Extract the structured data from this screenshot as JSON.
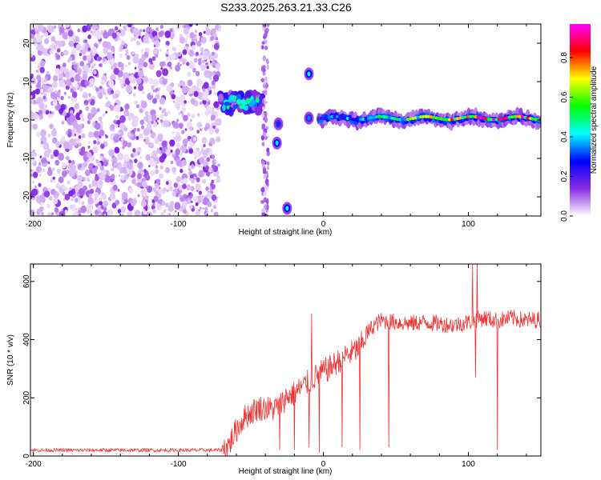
{
  "figure_title": "S233.2025.263.21.33.C26",
  "chart_data": [
    {
      "type": "heatmap",
      "title": "S233.2025.263.21.33.C26",
      "xlabel": "Height of straight line (km)",
      "ylabel": "Frequency (Hz)",
      "xlim": [
        -202,
        150
      ],
      "ylim": [
        -25,
        25
      ],
      "xticks": [
        -200,
        -100,
        0,
        100
      ],
      "yticks": [
        -20,
        -10,
        0,
        10,
        20
      ],
      "colorbar": {
        "label": "Normalized spectral amplitude",
        "range": [
          0.0,
          0.97
        ],
        "ticks": [
          0.0,
          0.2,
          0.4,
          0.6,
          0.8
        ],
        "tick_labels": [
          "0.0",
          "0.2",
          "0.4",
          "0.6",
          "0.8"
        ],
        "colormap": [
          "#ffffff",
          "#8a2be2",
          "#0000ff",
          "#00ffff",
          "#00ff00",
          "#ffff00",
          "#ff0000",
          "#ff00ff"
        ]
      },
      "features": [
        {
          "name": "noise",
          "x_range": [
            -202,
            -72
          ],
          "freq_range": [
            -25,
            25
          ],
          "amplitude": 0.1
        },
        {
          "name": "onset-cluster",
          "x_range": [
            -72,
            -42
          ],
          "freq_range": [
            2,
            7
          ],
          "amplitude": 0.45
        },
        {
          "name": "column",
          "x_range": [
            -42,
            -38
          ],
          "freq_range": [
            -25,
            25
          ],
          "amplitude": 0.15
        },
        {
          "name": "blob",
          "x_center": -32,
          "freq_center": -6,
          "amplitude": 0.4
        },
        {
          "name": "blob",
          "x_center": -31,
          "freq_center": -1,
          "amplitude": 0.3
        },
        {
          "name": "blob",
          "x_center": -25,
          "freq_center": -23,
          "amplitude": 0.45
        },
        {
          "name": "blob",
          "x_center": -10,
          "freq_center": 12,
          "amplitude": 0.45
        },
        {
          "name": "blob",
          "x_center": -10,
          "freq_center": 0.5,
          "amplitude": 0.35
        },
        {
          "name": "carrier-line",
          "x_range": [
            -3,
            150
          ],
          "freq_range": [
            -2,
            2
          ],
          "amplitude_range": [
            0.3,
            0.9
          ]
        }
      ]
    },
    {
      "type": "line",
      "xlabel": "Height of straight line (km)",
      "ylabel": "SNR (10 * v/v)",
      "xlim": [
        -202,
        150
      ],
      "ylim": [
        0,
        660
      ],
      "xticks": [
        -200,
        -100,
        0,
        100
      ],
      "yticks": [
        0,
        200,
        400,
        600
      ],
      "color": "#ee3333",
      "series": [
        {
          "name": "SNR",
          "x": [
            -202,
            -180,
            -160,
            -140,
            -120,
            -100,
            -80,
            -70,
            -65,
            -60,
            -55,
            -50,
            -45,
            -40,
            -35,
            -30,
            -25,
            -20,
            -15,
            -10,
            -5,
            0,
            5,
            10,
            15,
            20,
            25,
            30,
            35,
            40,
            50,
            60,
            70,
            80,
            90,
            100,
            110,
            120,
            130,
            140,
            150
          ],
          "values": [
            20,
            20,
            20,
            20,
            20,
            20,
            20,
            20,
            40,
            90,
            130,
            150,
            165,
            165,
            160,
            175,
            205,
            215,
            235,
            255,
            275,
            290,
            305,
            325,
            345,
            355,
            375,
            420,
            450,
            465,
            460,
            455,
            460,
            455,
            450,
            460,
            475,
            465,
            475,
            465,
            470
          ],
          "drops": [
            {
              "x": -30,
              "value": 20
            },
            {
              "x": -20,
              "value": 20
            },
            {
              "x": -10,
              "value": 30
            },
            {
              "x": -3,
              "value": 10
            },
            {
              "x": 13,
              "value": 30
            },
            {
              "x": 25,
              "value": 20
            },
            {
              "x": 45,
              "value": 30
            },
            {
              "x": 105,
              "value": 270
            },
            {
              "x": 120,
              "value": 20
            }
          ],
          "spikes": [
            {
              "x": -8,
              "value": 490
            },
            {
              "x": 103,
              "value": 660
            },
            {
              "x": 106,
              "value": 660
            }
          ]
        }
      ]
    }
  ]
}
